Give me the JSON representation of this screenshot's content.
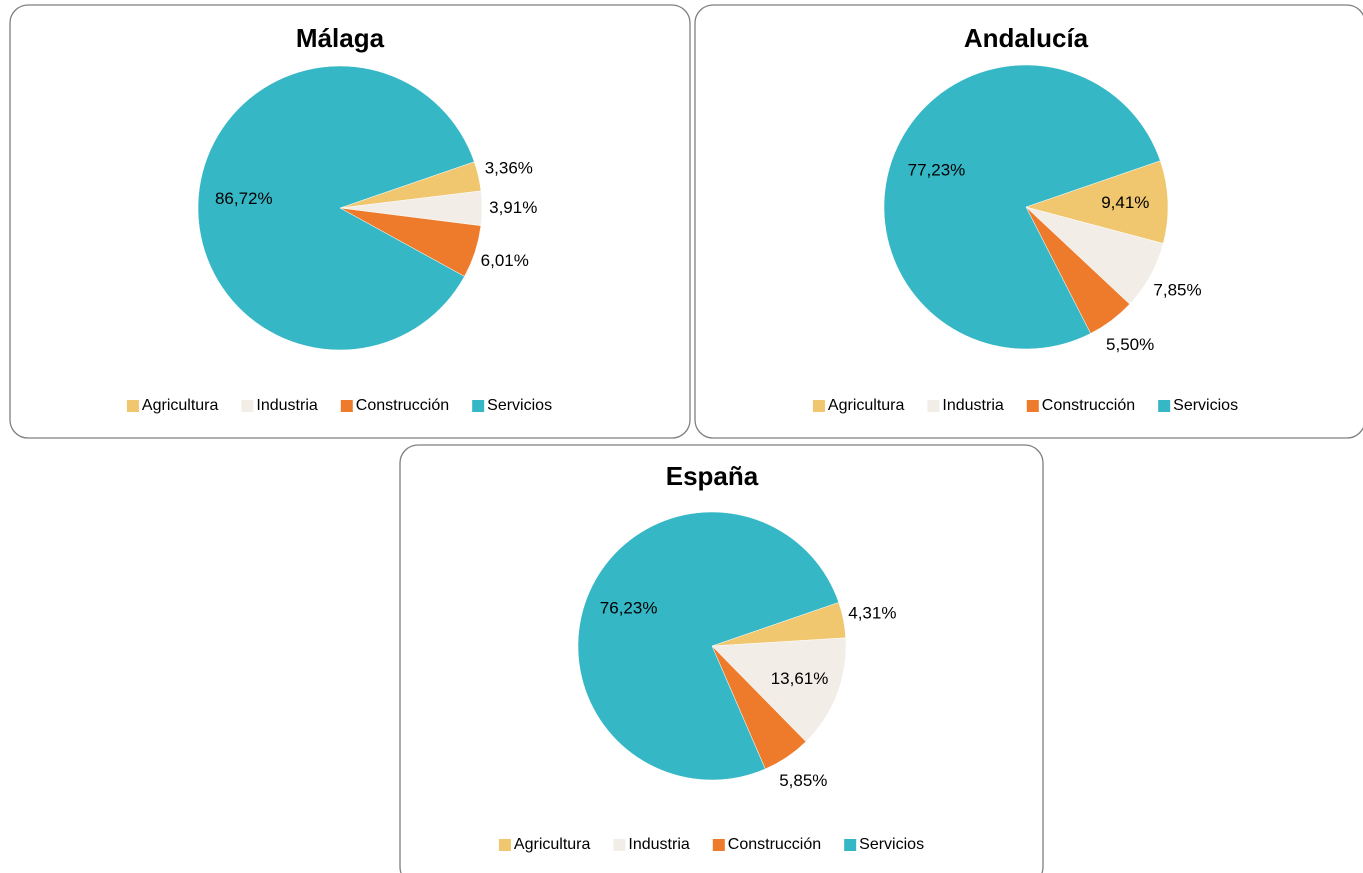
{
  "chart_data": [
    {
      "type": "pie",
      "title": "Málaga",
      "categories": [
        "Agricultura",
        "Industria",
        "Construcción",
        "Servicios"
      ],
      "values": [
        3.36,
        3.91,
        6.01,
        86.72
      ],
      "value_labels": [
        "3,36%",
        "3,91%",
        "6,01%",
        "86,72%"
      ],
      "colors": [
        "#f0c66e",
        "#f2ede6",
        "#ee7b2c",
        "#35b7c5"
      ],
      "legend": "bottom"
    },
    {
      "type": "pie",
      "title": "Andalucía",
      "categories": [
        "Agricultura",
        "Industria",
        "Construcción",
        "Servicios"
      ],
      "values": [
        9.41,
        7.85,
        5.5,
        77.23
      ],
      "value_labels": [
        "9,41%",
        "7,85%",
        "5,50%",
        "77,23%"
      ],
      "colors": [
        "#f0c66e",
        "#f2ede6",
        "#ee7b2c",
        "#35b7c5"
      ],
      "legend": "bottom"
    },
    {
      "type": "pie",
      "title": "España",
      "categories": [
        "Agricultura",
        "Industria",
        "Construcción",
        "Servicios"
      ],
      "values": [
        4.31,
        13.61,
        5.85,
        76.23
      ],
      "value_labels": [
        "4,31%",
        "13,61%",
        "5,85%",
        "76,23%"
      ],
      "colors": [
        "#f0c66e",
        "#f2ede6",
        "#ee7b2c",
        "#35b7c5"
      ],
      "legend": "bottom"
    }
  ]
}
